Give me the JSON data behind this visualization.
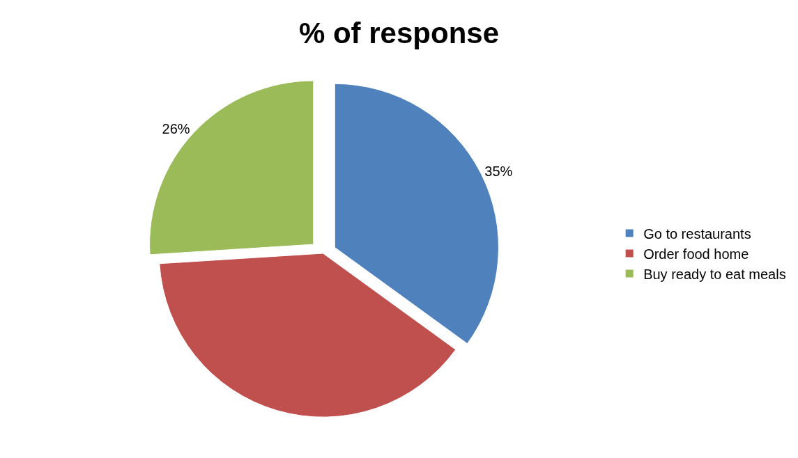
{
  "chart_data": {
    "type": "pie",
    "title": "% of response",
    "categories": [
      "Go to restaurants",
      "Order food home",
      "Buy ready to eat meals"
    ],
    "values": [
      35,
      39,
      26
    ],
    "colors": [
      "#4f81bd",
      "#c0504d",
      "#9bbb59"
    ],
    "value_labels": [
      "35%",
      null,
      "26%"
    ],
    "legend": "right"
  }
}
